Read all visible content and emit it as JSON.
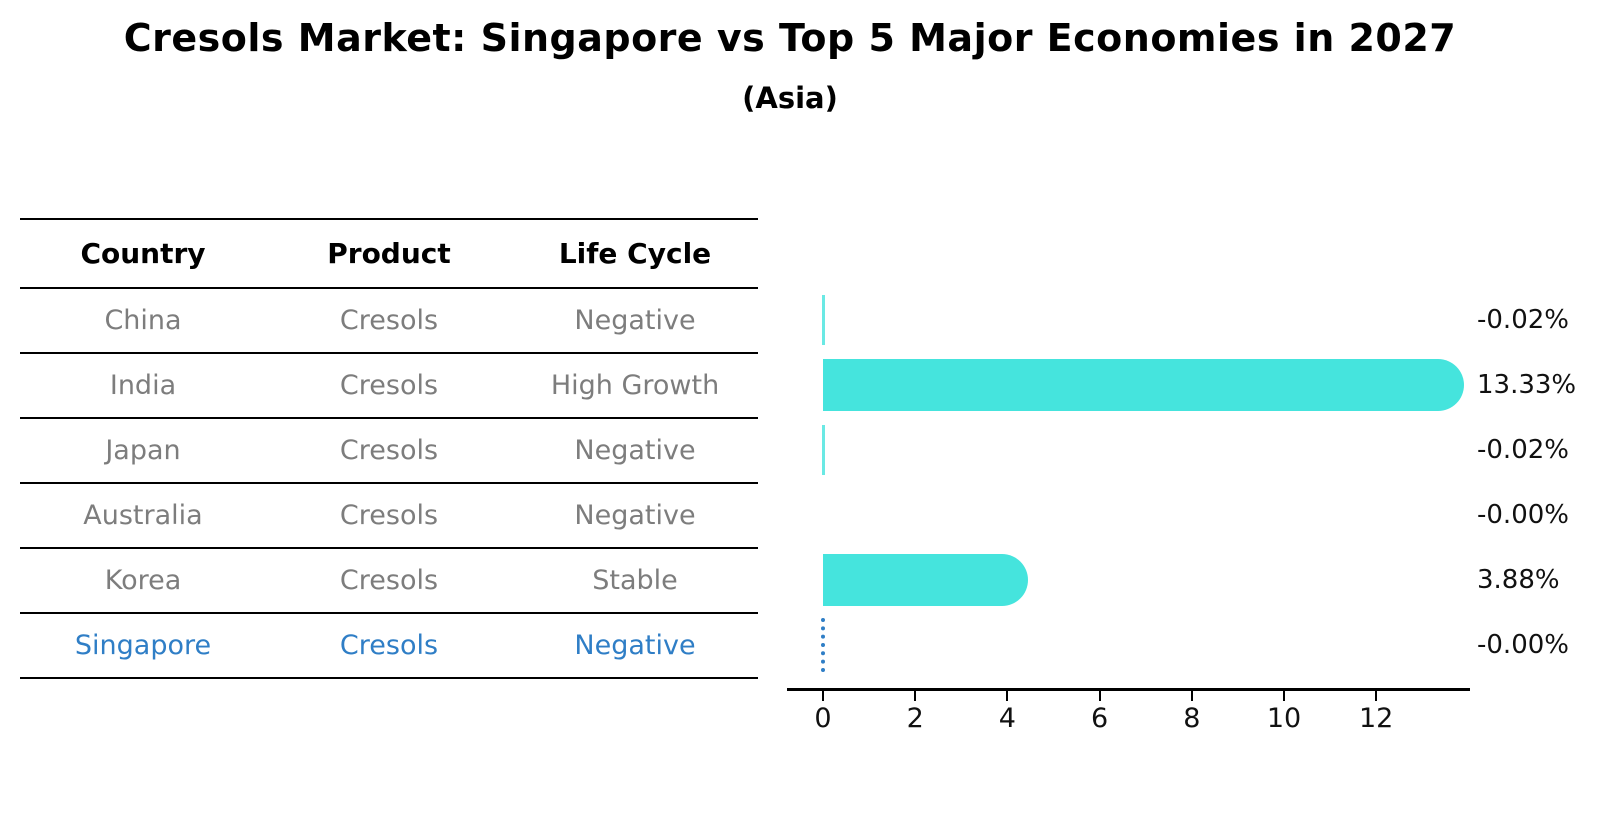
{
  "chart_data": {
    "type": "bar",
    "orientation": "horizontal",
    "title": "Cresols Market: Singapore vs Top 5 Major Economies in 2027",
    "subtitle": "(Asia)",
    "categories": [
      "China",
      "India",
      "Japan",
      "Australia",
      "Korea",
      "Singapore"
    ],
    "values": [
      -0.02,
      13.33,
      -0.02,
      0.0,
      3.88,
      0.0
    ],
    "value_labels": [
      "-0.02%",
      "13.33%",
      "-0.02%",
      "-0.00%",
      "3.88%",
      "-0.00%"
    ],
    "x_ticks": [
      0,
      2,
      4,
      6,
      8,
      10,
      12
    ],
    "xlim": [
      -0.8,
      14.0
    ],
    "grid": false,
    "legend": false,
    "bar_color": "#45E4DD",
    "highlight_index": 5,
    "highlight_color": "#2F7EC6"
  },
  "table": {
    "headers": [
      "Country",
      "Product",
      "Life Cycle"
    ],
    "rows": [
      {
        "country": "China",
        "product": "Cresols",
        "life_cycle": "Negative",
        "highlight": false
      },
      {
        "country": "India",
        "product": "Cresols",
        "life_cycle": "High Growth",
        "highlight": false
      },
      {
        "country": "Japan",
        "product": "Cresols",
        "life_cycle": "Negative",
        "highlight": false
      },
      {
        "country": "Australia",
        "product": "Cresols",
        "life_cycle": "Negative",
        "highlight": false
      },
      {
        "country": "Korea",
        "product": "Cresols",
        "life_cycle": "Stable",
        "highlight": false
      },
      {
        "country": "Singapore",
        "product": "Cresols",
        "life_cycle": "Negative",
        "highlight": true
      }
    ]
  },
  "colors": {
    "bar": "#45E4DD",
    "highlight_blue": "#2F7EC6",
    "table_text_gray": "#7d7d7d",
    "axis_black": "#000000"
  }
}
